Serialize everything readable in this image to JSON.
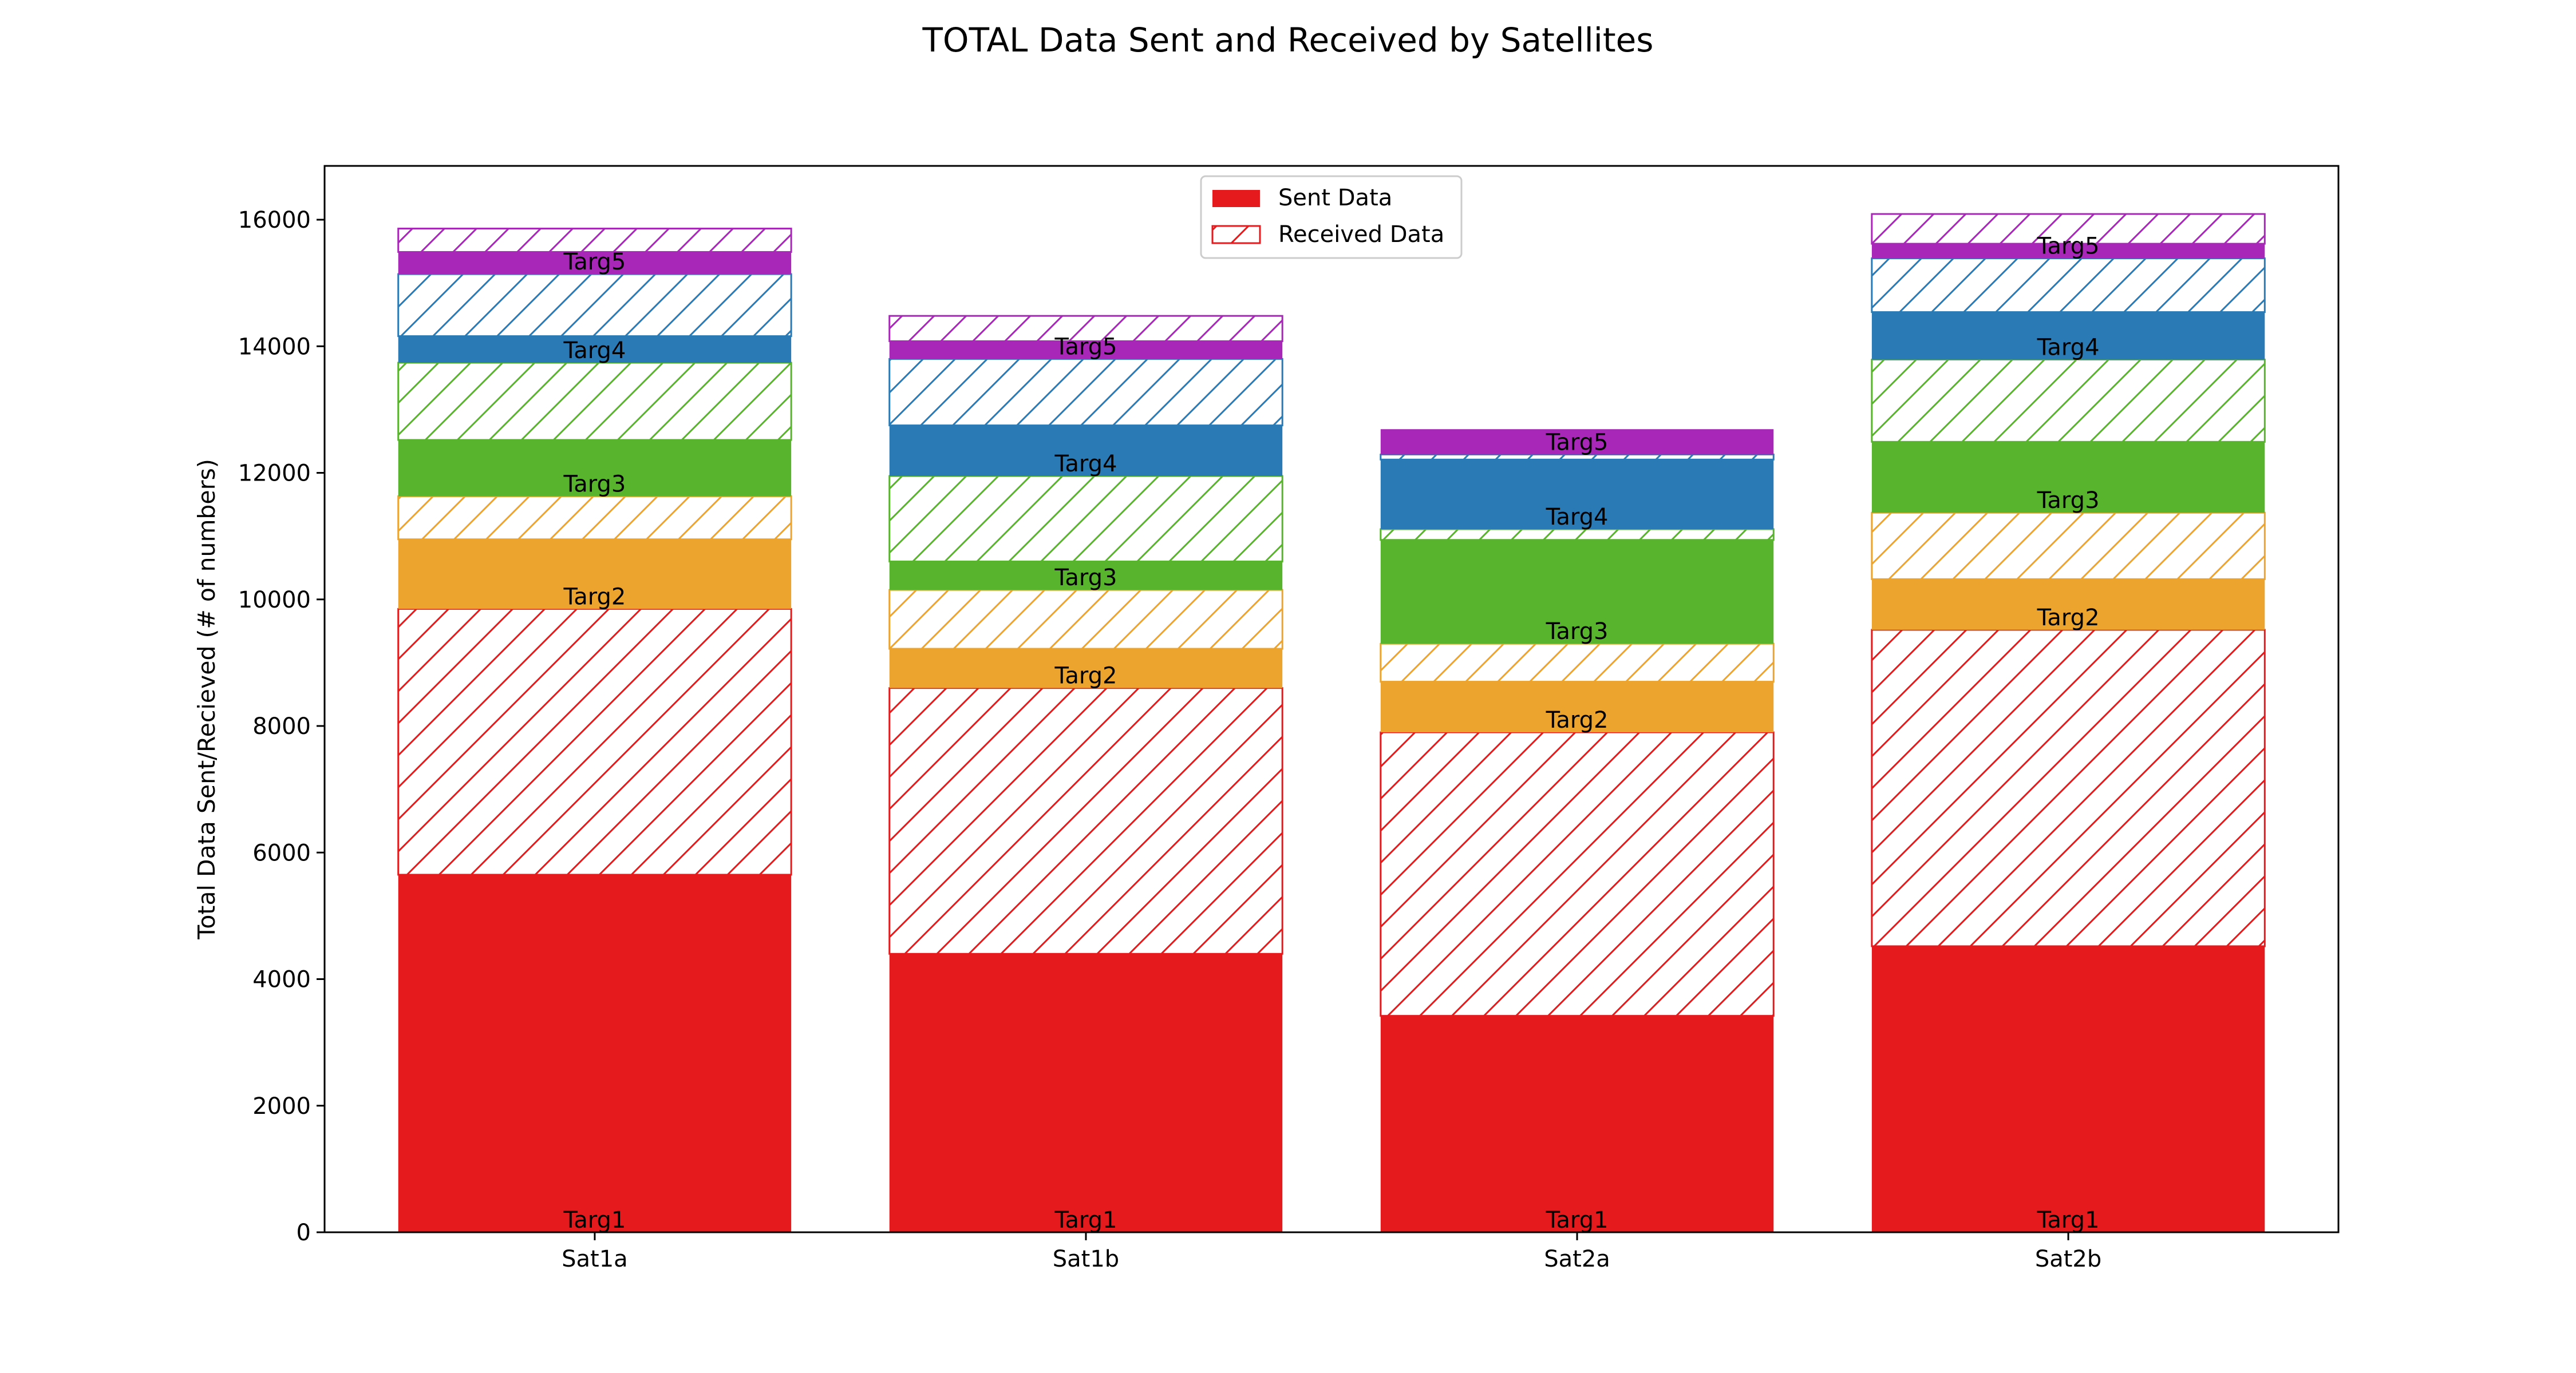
{
  "chart_data": {
    "type": "bar",
    "stacked": true,
    "title": "TOTAL Data Sent and Received by Satellites",
    "ylabel": "Total Data Sent/Recieved (# of numbers)",
    "xlabel": "",
    "ylim": [
      0,
      16850
    ],
    "yticks": [
      0,
      2000,
      4000,
      6000,
      8000,
      10000,
      12000,
      14000,
      16000
    ],
    "grid": false,
    "legend": {
      "placement": "top-center",
      "entries": [
        {
          "label": "Sent Data",
          "style": "solid",
          "color": "#e41a1c"
        },
        {
          "label": "Received Data",
          "style": "hatched",
          "color": "#e41a1c"
        }
      ]
    },
    "categories": [
      "Sat1a",
      "Sat1b",
      "Sat2a",
      "Sat2b"
    ],
    "series": [
      {
        "name": "Targ1",
        "color": "#e41a1c",
        "sent": [
          5650,
          4400,
          3420,
          4520
        ],
        "received": [
          4200,
          4200,
          4480,
          5000
        ]
      },
      {
        "name": "Targ2",
        "color": "#eda42e",
        "sent": [
          1100,
          620,
          800,
          800
        ],
        "received": [
          680,
          930,
          600,
          1050
        ]
      },
      {
        "name": "Targ3",
        "color": "#58b42c",
        "sent": [
          890,
          450,
          1640,
          1120
        ],
        "received": [
          1220,
          1350,
          170,
          1300
        ]
      },
      {
        "name": "Targ4",
        "color": "#2a7ab5",
        "sent": [
          420,
          800,
          1100,
          750
        ],
        "received": [
          980,
          1050,
          80,
          850
        ]
      },
      {
        "name": "Targ5",
        "color": "#a827b8",
        "sent": [
          350,
          280,
          400,
          230
        ],
        "received": [
          370,
          400,
          0,
          470
        ]
      }
    ]
  }
}
